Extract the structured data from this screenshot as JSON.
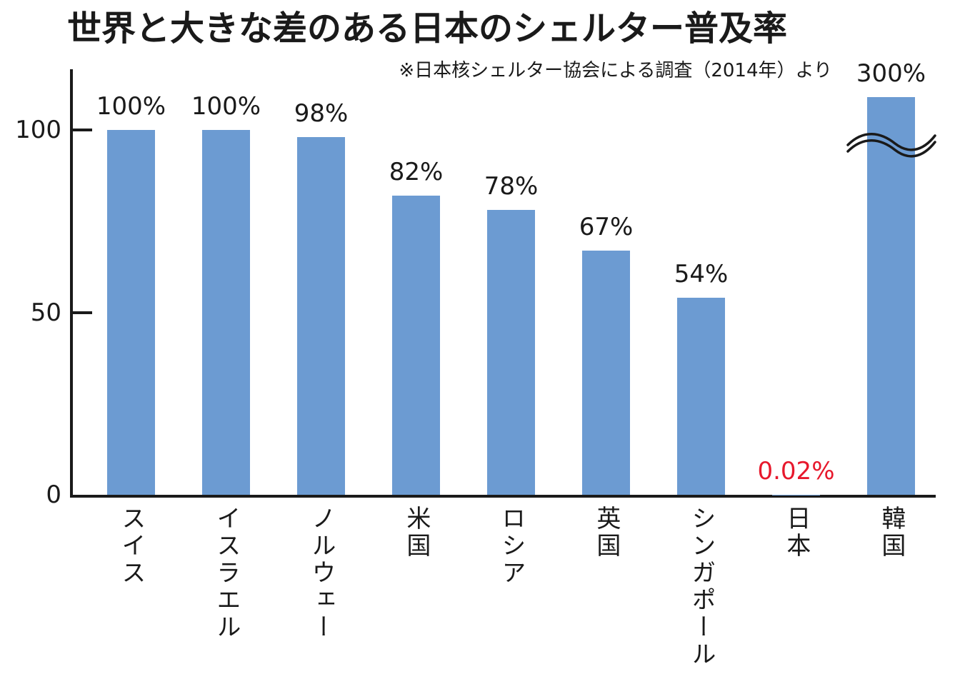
{
  "title": "世界と大きな差のある日本のシェルター普及率",
  "subtitle": "※日本核シェルター協会による調査（2014年）より",
  "colors": {
    "bar": "#6c9bd2",
    "axis": "#1a1a1a",
    "label": "#1a1a1a",
    "highlight": "#e7182c"
  },
  "chart_data": {
    "type": "bar",
    "title": "世界と大きな差のある日本のシェルター普及率",
    "source_note": "※日本核シェルター協会による調査（2014年）より",
    "categories": [
      "スイス",
      "イスラエル",
      "ノルウェー",
      "米国",
      "ロシア",
      "英国",
      "シンガポール",
      "日本",
      "韓国"
    ],
    "values": [
      100,
      100,
      98,
      82,
      78,
      67,
      54,
      0.02,
      300
    ],
    "value_labels": [
      "100%",
      "100%",
      "98%",
      "82%",
      "78%",
      "67%",
      "54%",
      "0.02%",
      "300%"
    ],
    "highlight_index": 7,
    "break_index": 8,
    "break_drawn_value": 109,
    "yticks": [
      0,
      50,
      100
    ],
    "ylim": [
      0,
      117
    ],
    "xlabel": "",
    "ylabel": "",
    "grid": false,
    "legend": null,
    "bar_color": "#6c9bd2",
    "highlight_text_color": "#e7182c"
  }
}
